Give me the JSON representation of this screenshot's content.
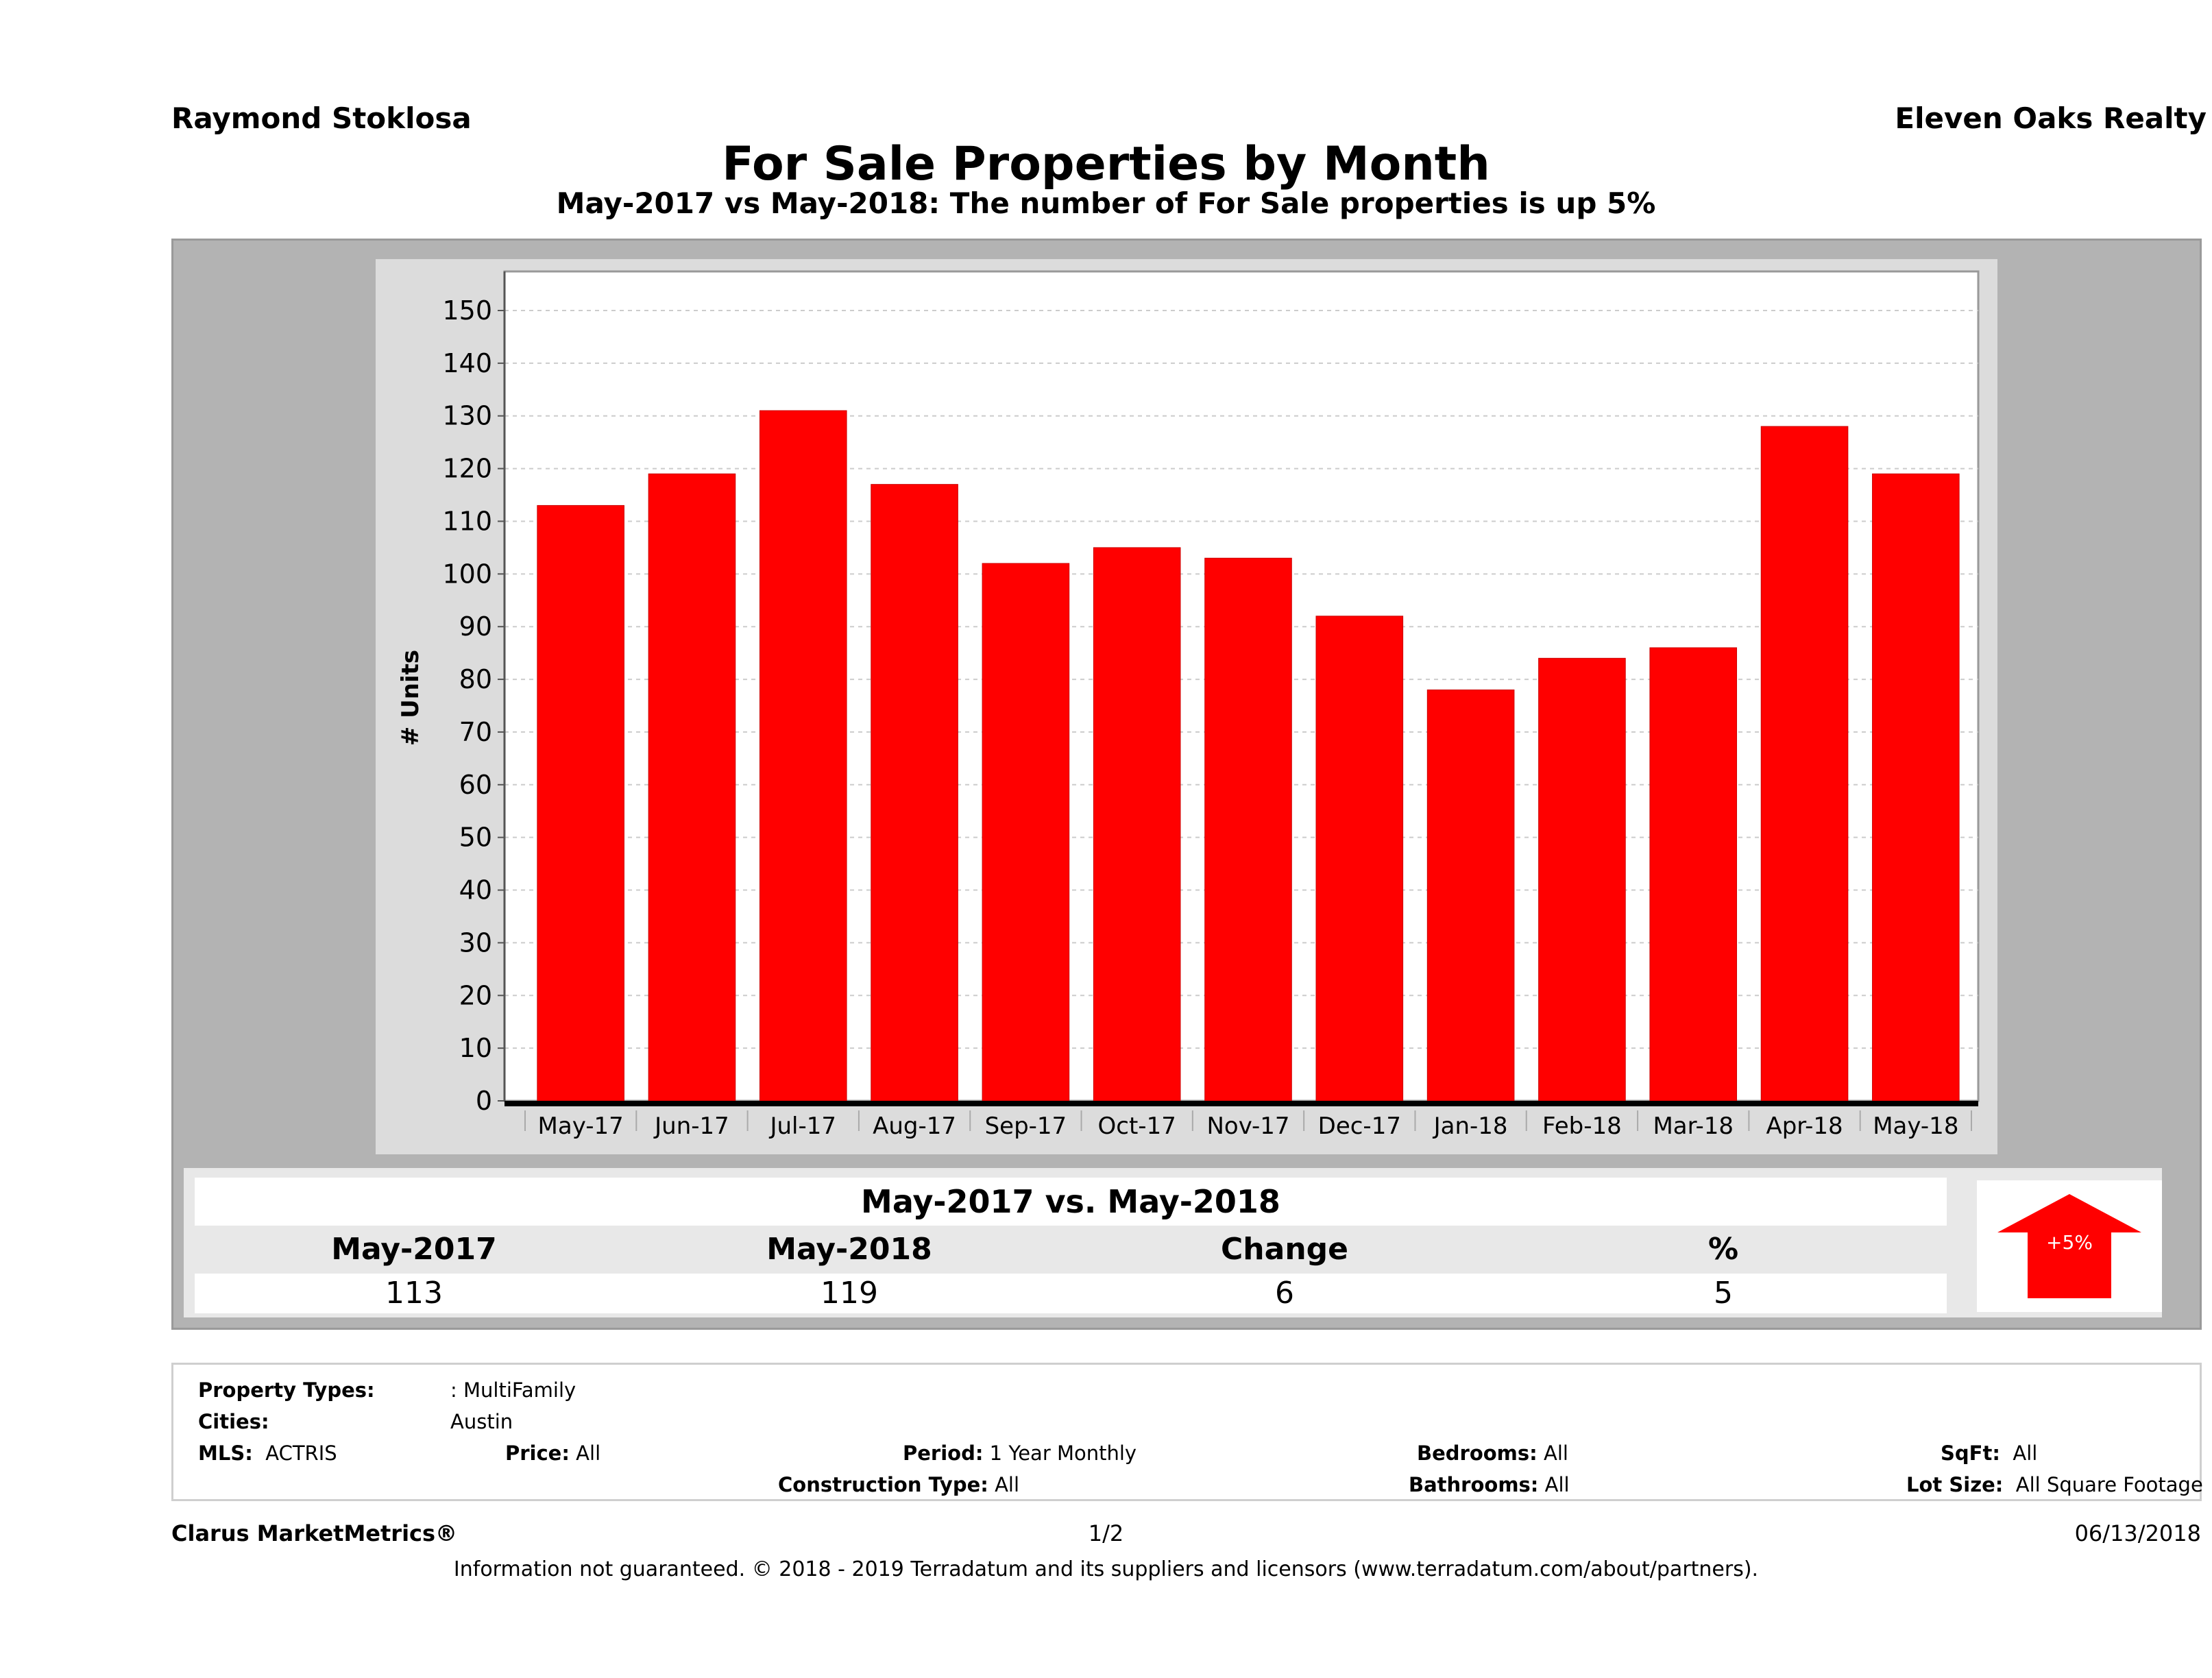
{
  "header": {
    "agent_name": "Raymond Stoklosa",
    "brokerage": "Eleven Oaks Realty",
    "title": "For Sale Properties by Month",
    "subtitle": "May-2017 vs May-2018: The number of For Sale  properties is up 5%"
  },
  "chart_data": {
    "type": "bar",
    "title": "For Sale Properties by Month",
    "xlabel": "",
    "ylabel": "# Units",
    "categories": [
      "May-17",
      "Jun-17",
      "Jul-17",
      "Aug-17",
      "Sep-17",
      "Oct-17",
      "Nov-17",
      "Dec-17",
      "Jan-18",
      "Feb-18",
      "Mar-18",
      "Apr-18",
      "May-18"
    ],
    "values": [
      113,
      119,
      131,
      117,
      102,
      105,
      103,
      92,
      78,
      84,
      86,
      128,
      119
    ],
    "ylim": [
      0,
      155
    ],
    "yticks": [
      0,
      10,
      20,
      30,
      40,
      50,
      60,
      70,
      80,
      90,
      100,
      110,
      120,
      130,
      140,
      150
    ],
    "grid": true,
    "legend": "none",
    "bar_color": "#ff0000"
  },
  "comparison": {
    "title": "May-2017 vs. May-2018",
    "headers": [
      "May-2017",
      "May-2018",
      "Change",
      "%"
    ],
    "values": [
      "113",
      "119",
      "6",
      "5"
    ],
    "badge_label": "+5%",
    "badge_color": "#ff0000",
    "direction": "up"
  },
  "filters": {
    "property_types_label": "Property Types:",
    "property_types_value": ": MultiFamily",
    "cities_label": "Cities:",
    "cities_value": "Austin",
    "mls_label": "MLS:",
    "mls_value": "ACTRIS",
    "price_label": "Price:",
    "price_value": "All",
    "period_label": "Period:",
    "period_value": "1 Year Monthly",
    "construction_label": "Construction Type:",
    "construction_value": "All",
    "bedrooms_label": "Bedrooms:",
    "bedrooms_value": "All",
    "bathrooms_label": "Bathrooms:",
    "bathrooms_value": "All",
    "sqft_label": "SqFt:",
    "sqft_value": "All",
    "lot_size_label": "Lot Size:",
    "lot_size_value": "All Square Footage"
  },
  "footer": {
    "brand": "Clarus MarketMetrics®",
    "page": "1/2",
    "date": "06/13/2018",
    "disclaimer": "Information not guaranteed. © 2018 - 2019 Terradatum and its suppliers and licensors (www.terradatum.com/about/partners)."
  }
}
